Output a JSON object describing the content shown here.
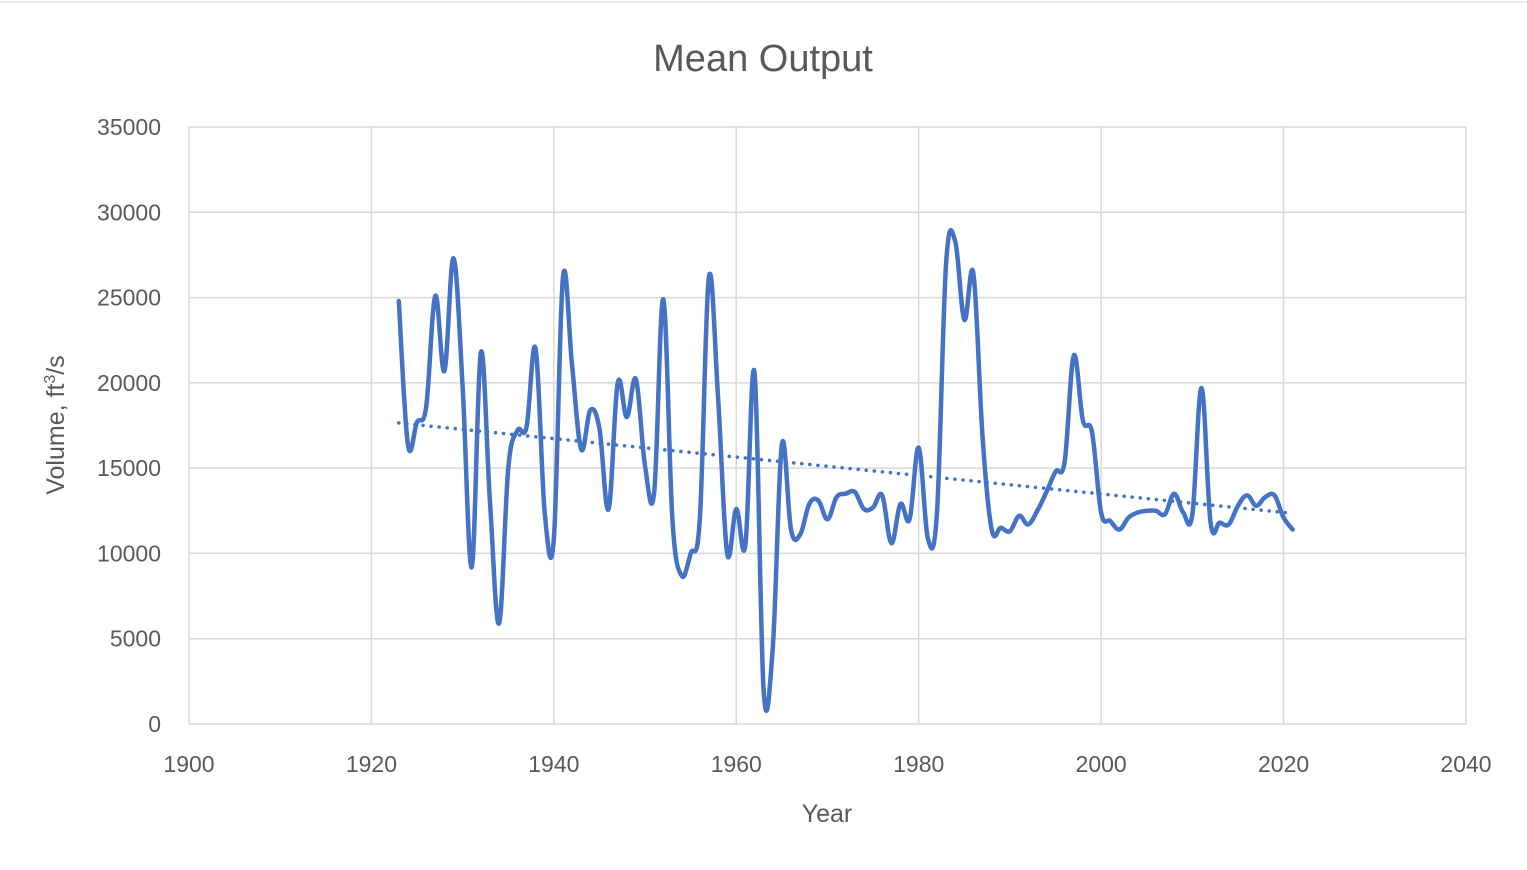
{
  "chart_data": {
    "type": "line",
    "title": "Mean Output",
    "xlabel": "Year",
    "ylabel_main": "Volume, ft",
    "ylabel_sup": "3",
    "ylabel_tail": "/s",
    "xlim": [
      1900,
      2040
    ],
    "ylim": [
      0,
      35000
    ],
    "x_ticks": [
      "1900",
      "1920",
      "1940",
      "1960",
      "1980",
      "2000",
      "2020",
      "2040"
    ],
    "y_ticks": [
      "0",
      "5000",
      "10000",
      "15000",
      "20000",
      "25000",
      "30000",
      "35000"
    ],
    "grid": true,
    "legend": "none",
    "colors": {
      "series": "#4472c4",
      "grid": "#d9d9d9",
      "text": "#595959"
    },
    "series": [
      {
        "style": "solid",
        "x": [
          1923,
          1924,
          1925,
          1926,
          1927,
          1928,
          1929,
          1930,
          1931,
          1932,
          1933,
          1934,
          1935,
          1936,
          1937,
          1938,
          1939,
          1940,
          1941,
          1942,
          1943,
          1944,
          1945,
          1946,
          1947,
          1948,
          1949,
          1950,
          1951,
          1952,
          1953,
          1954,
          1955,
          1956,
          1957,
          1958,
          1959,
          1960,
          1961,
          1962,
          1963,
          1964,
          1965,
          1966,
          1967,
          1968,
          1969,
          1970,
          1971,
          1972,
          1973,
          1974,
          1975,
          1976,
          1977,
          1978,
          1979,
          1980,
          1981,
          1982,
          1983,
          1984,
          1985,
          1986,
          1987,
          1988,
          1989,
          1990,
          1991,
          1992,
          1993,
          1994,
          1995,
          1996,
          1997,
          1998,
          1999,
          2000,
          2001,
          2002,
          2003,
          2004,
          2005,
          2006,
          2007,
          2008,
          2009,
          2010,
          2011,
          2012,
          2013,
          2014,
          2015,
          2016,
          2017,
          2018,
          2019,
          2020,
          2021
        ],
        "y": [
          24800,
          16400,
          17700,
          18600,
          25100,
          20700,
          27300,
          19800,
          9200,
          21800,
          13000,
          5900,
          15000,
          17200,
          17400,
          22000,
          12400,
          10900,
          26200,
          21000,
          16100,
          18400,
          17300,
          12600,
          20000,
          18000,
          20200,
          15100,
          13600,
          24900,
          12000,
          8700,
          10000,
          12000,
          26200,
          19200,
          10000,
          12600,
          10500,
          20600,
          2000,
          4500,
          16400,
          11400,
          11100,
          12900,
          13100,
          12000,
          13300,
          13500,
          13600,
          12600,
          12700,
          13400,
          10600,
          12900,
          12000,
          16200,
          10900,
          12400,
          27000,
          28300,
          23700,
          26400,
          16800,
          11400,
          11500,
          11300,
          12200,
          11700,
          12500,
          13600,
          14800,
          15400,
          21600,
          17800,
          17100,
          12400,
          11900,
          11400,
          12100,
          12400,
          12500,
          12500,
          12300,
          13500,
          12400,
          12300,
          19700,
          11800,
          11800,
          11700,
          12800,
          13400,
          12800,
          13300,
          13400,
          12100,
          11400
        ]
      },
      {
        "style": "dotted",
        "x": [
          1923,
          2021
        ],
        "y": [
          17650,
          12350
        ]
      }
    ]
  }
}
